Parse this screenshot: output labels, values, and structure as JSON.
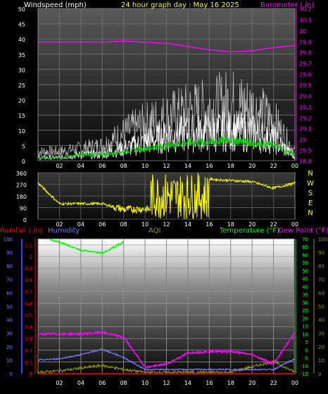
{
  "top_panel": {
    "left_label": "Windspeed (mph)",
    "center_label": "24 hour graph day : May 16 2025",
    "right_label": "Barometer (.in)",
    "left_ticks": [
      "0",
      "5",
      "10",
      "15",
      "20",
      "25",
      "30",
      "35",
      "40",
      "45",
      "50"
    ],
    "right_ticks": [
      "28.8",
      "28.9",
      "29",
      "29.1",
      "29.2",
      "29.3",
      "29.4",
      "29.5",
      "29.6",
      "29.7",
      "29.8",
      "29.9",
      "30",
      "30.1",
      "30.2"
    ],
    "x_ticks": [
      "02",
      "04",
      "06",
      "08",
      "10",
      "12",
      "14",
      "16",
      "18",
      "20",
      "22",
      "00"
    ]
  },
  "direction_panel": {
    "left_ticks": [
      "0",
      "90",
      "180",
      "270",
      "360"
    ],
    "compass": [
      "N",
      "W",
      "S",
      "E",
      "N"
    ],
    "x_ticks": [
      "02",
      "04",
      "06",
      "08",
      "10",
      "12",
      "14",
      "16",
      "18",
      "20",
      "22",
      "00"
    ]
  },
  "bottom_panel": {
    "rain_label": "Rainfall (.in)",
    "humidity_label": "Humidity",
    "aqi_label": "AQI",
    "temp_label": "Temperature (°F)",
    "dew_label": "Dew Point (°F)",
    "humidity_ticks": [
      "0",
      "10",
      "20",
      "30",
      "40",
      "50",
      "60",
      "70",
      "80",
      "90",
      "100"
    ],
    "rain_ticks": [
      "0",
      "0.1",
      "0.2",
      "0.3",
      "0.4",
      "0.5",
      "0.6",
      "0.7",
      "0.8",
      "0.9",
      "1",
      "1.1"
    ],
    "temp_ticks": [
      "-15",
      "-10",
      "-5",
      "0",
      "5",
      "10",
      "15",
      "20",
      "25",
      "30",
      "35",
      "40",
      "45",
      "50",
      "55",
      "60",
      "65",
      "70"
    ],
    "aqi_ticks": [
      "0",
      "10",
      "20",
      "30",
      "40",
      "50",
      "60",
      "70",
      "80",
      "90",
      "100"
    ],
    "x_ticks": [
      "02",
      "04",
      "06",
      "08",
      "10",
      "12",
      "14",
      "16",
      "18",
      "20",
      "22",
      "00"
    ]
  },
  "colors": {
    "wind": "#ffffff",
    "gust": "#bbbbbb",
    "avg_wind": "#00cc00",
    "barometer": "#ff00ff",
    "direction": "#ffff00",
    "rain": "#ff0000",
    "humidity": "#7777ff",
    "aqi": "#999900",
    "temperature": "#00ff00",
    "dewpoint": "#ff00ff"
  },
  "chart_data": [
    {
      "type": "line",
      "title": "24 hour graph day : May 16 2025",
      "ylabel": "Windspeed (mph)",
      "y2label": "Barometer (.in)",
      "ylim": [
        0,
        50
      ],
      "y2lim": [
        28.8,
        30.2
      ],
      "x": [
        "00",
        "02",
        "04",
        "06",
        "08",
        "10",
        "12",
        "14",
        "16",
        "18",
        "20",
        "22",
        "00"
      ],
      "series": [
        {
          "name": "Windspeed",
          "axis": "left",
          "values": [
            1,
            1,
            2,
            2,
            4,
            6,
            8,
            9,
            9,
            10,
            9,
            7,
            1
          ]
        },
        {
          "name": "Gust",
          "axis": "left",
          "values": [
            3,
            3,
            4,
            5,
            9,
            12,
            14,
            16,
            17,
            19,
            17,
            13,
            3
          ]
        },
        {
          "name": "Average",
          "axis": "left",
          "values": [
            1,
            1,
            2,
            2,
            3,
            4,
            5,
            6,
            6,
            7,
            6,
            5,
            2
          ]
        },
        {
          "name": "Barometer",
          "axis": "right",
          "values": [
            29.89,
            29.89,
            29.89,
            29.89,
            29.9,
            29.89,
            29.88,
            29.85,
            29.82,
            29.8,
            29.81,
            29.84,
            29.86
          ]
        }
      ]
    },
    {
      "type": "line",
      "ylabel": "Wind direction",
      "ylim": [
        0,
        360
      ],
      "x": [
        "00",
        "02",
        "04",
        "06",
        "08",
        "10",
        "12",
        "14",
        "16",
        "18",
        "20",
        "22",
        "00"
      ],
      "series": [
        {
          "name": "Direction",
          "values": [
            280,
            120,
            120,
            120,
            75,
            80,
            50,
            300,
            310,
            300,
            290,
            240,
            280
          ]
        }
      ]
    },
    {
      "type": "line",
      "xlim": [
        "00",
        "00"
      ],
      "series": [
        {
          "name": "Temperature",
          "axis": "temp",
          "unit": "°F",
          "values": [
            72,
            68,
            63,
            61,
            68,
            null,
            null,
            null,
            null,
            null,
            null,
            null,
            null
          ]
        },
        {
          "name": "Dew Point",
          "axis": "temp",
          "unit": "°F",
          "values": [
            10,
            10,
            10,
            11,
            8,
            -11,
            -9,
            -2,
            -1,
            -1,
            -3,
            -9,
            11
          ]
        },
        {
          "name": "Humidity",
          "axis": "humidity",
          "unit": "%",
          "values": [
            10,
            11,
            14,
            18,
            12,
            3,
            3,
            3,
            3,
            3,
            3,
            3,
            11
          ]
        },
        {
          "name": "Rainfall",
          "axis": "rain",
          "unit": ".in",
          "values": [
            0,
            0,
            0,
            0,
            0,
            0,
            0,
            0,
            0,
            0,
            0,
            0,
            0
          ]
        },
        {
          "name": "AQI",
          "axis": "humidity",
          "values": [
            1,
            2,
            4,
            6,
            3,
            1,
            1,
            1,
            1,
            1,
            5,
            9,
            1
          ]
        }
      ],
      "ylim_humidity": [
        0,
        100
      ],
      "ylim_rain": [
        0,
        1.15
      ],
      "ylim_temp": [
        -15,
        70
      ]
    }
  ]
}
